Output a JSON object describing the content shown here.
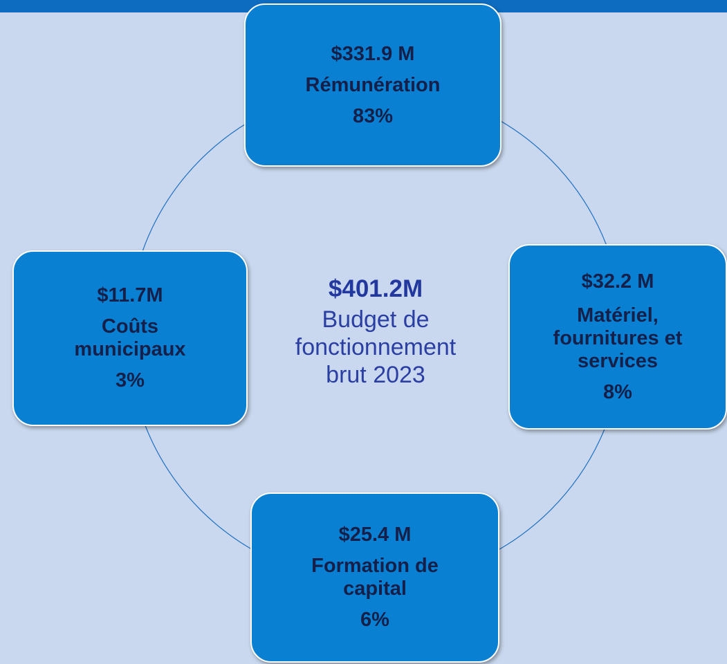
{
  "center": {
    "amount": "$401.2M",
    "lines": [
      "Budget de",
      "fonctionnement",
      "brut 2023"
    ]
  },
  "nodes": [
    {
      "amount": "$331.9 M",
      "label": [
        "Rémunération"
      ],
      "percent": "83%"
    },
    {
      "amount": "$32.2 M",
      "label": [
        "Matériel,",
        "fournitures et",
        "services"
      ],
      "percent": "8%"
    },
    {
      "amount": "$25.4 M",
      "label": [
        "Formation de",
        "capital"
      ],
      "percent": "6%"
    },
    {
      "amount": "$11.7M",
      "label": [
        "Coûts",
        "municipaux"
      ],
      "percent": "3%"
    }
  ]
}
